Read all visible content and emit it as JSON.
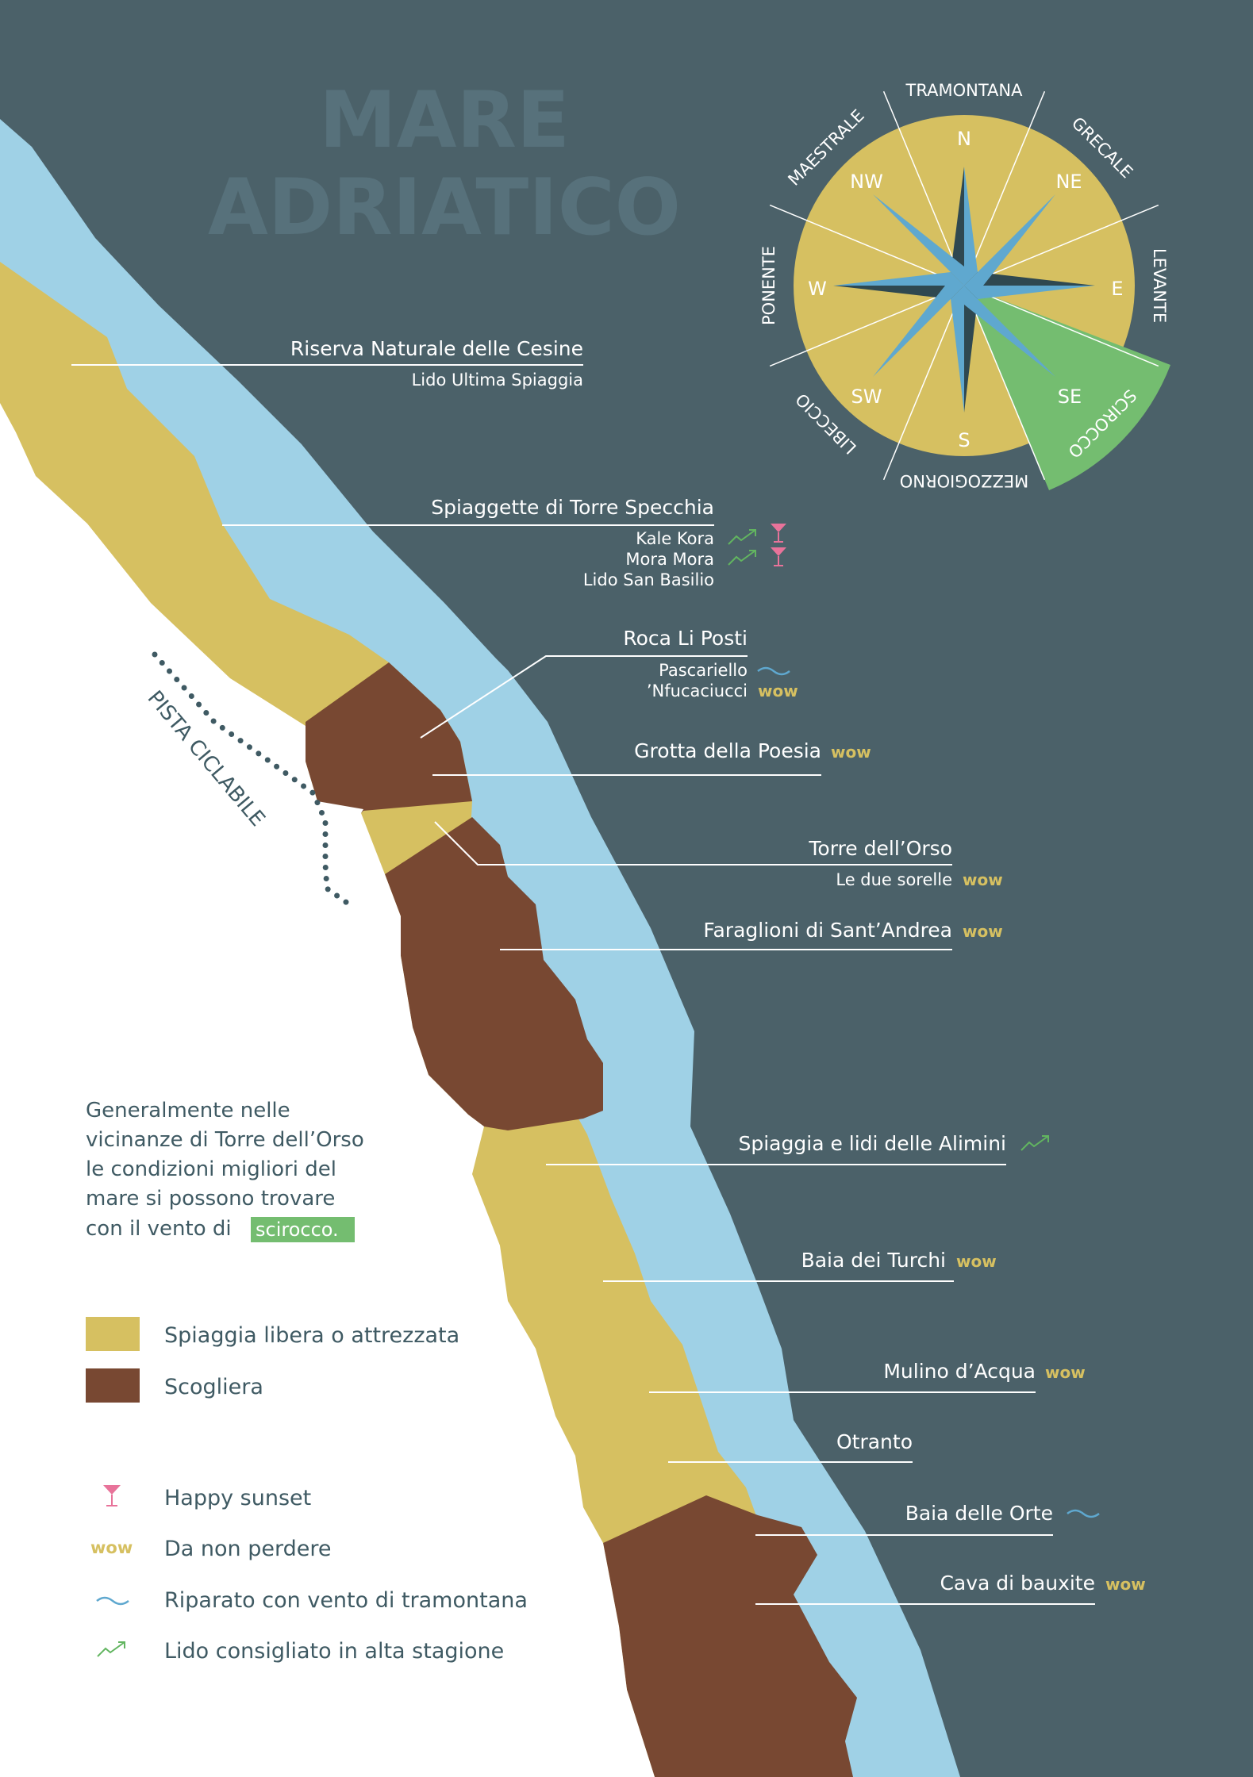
{
  "sea_title": {
    "line1": "MARE",
    "line2": "ADRIATICO"
  },
  "compass": {
    "directions": [
      "N",
      "NE",
      "E",
      "SE",
      "S",
      "SW",
      "W",
      "NW"
    ],
    "winds": [
      "TRAMONTANA",
      "GRECALE",
      "LEVANTE",
      "SCIROCCO",
      "MEZZOGIORNO",
      "LIBECCIO",
      "PONENTE",
      "MAESTRALE"
    ],
    "highlight_wind": "SCIROCCO"
  },
  "cycle_path": "PISTA CICLABILE",
  "places": [
    {
      "name": "Riserva Naturale delle Cesine",
      "sub": [
        "Lido Ultima Spiaggia"
      ]
    },
    {
      "name": "Spiaggette di Torre Specchia",
      "sub": [
        "Kale Kora",
        "Mora Mora",
        "Lido San Basilio"
      ]
    },
    {
      "name": "Roca Li Posti",
      "sub": [
        "Pascariello",
        "’Nfucaciucci"
      ]
    },
    {
      "name": "Grotta della Poesia",
      "sub": []
    },
    {
      "name": "Torre dell’Orso",
      "sub": [
        "Le due sorelle"
      ]
    },
    {
      "name": "Faraglioni di Sant’Andrea",
      "sub": []
    },
    {
      "name": "Spiaggia e lidi delle Alimini",
      "sub": []
    },
    {
      "name": "Baia dei Turchi",
      "sub": []
    },
    {
      "name": "Mulino d’Acqua",
      "sub": []
    },
    {
      "name": "Otranto",
      "sub": []
    },
    {
      "name": "Baia delle Orte",
      "sub": []
    },
    {
      "name": "Cava di bauxite",
      "sub": []
    }
  ],
  "wow_label": "wow",
  "note": {
    "lines": [
      "Generalmente nelle",
      "vicinanze di Torre dell’Orso",
      "le condizioni migliori del",
      "mare si possono trovare",
      "con il vento di"
    ],
    "highlight": "scirocco."
  },
  "legend": {
    "beach": "Spiaggia libera o attrezzata",
    "cliff": "Scogliera",
    "sunset": "Happy sunset",
    "wow": "Da non perdere",
    "shelter": "Riparato con vento di tramontana",
    "lido": "Lido consigliato in alta stagione"
  },
  "colors": {
    "sea_dark": "#4b6169",
    "shallow": "#9fd1e6",
    "beach": "#d6c061",
    "cliff": "#784832",
    "scirocco": "#74bd70",
    "wow": "#d6c061",
    "sunset": "#e8739a",
    "lido": "#62b560",
    "tramontana": "#5fa8cf"
  }
}
